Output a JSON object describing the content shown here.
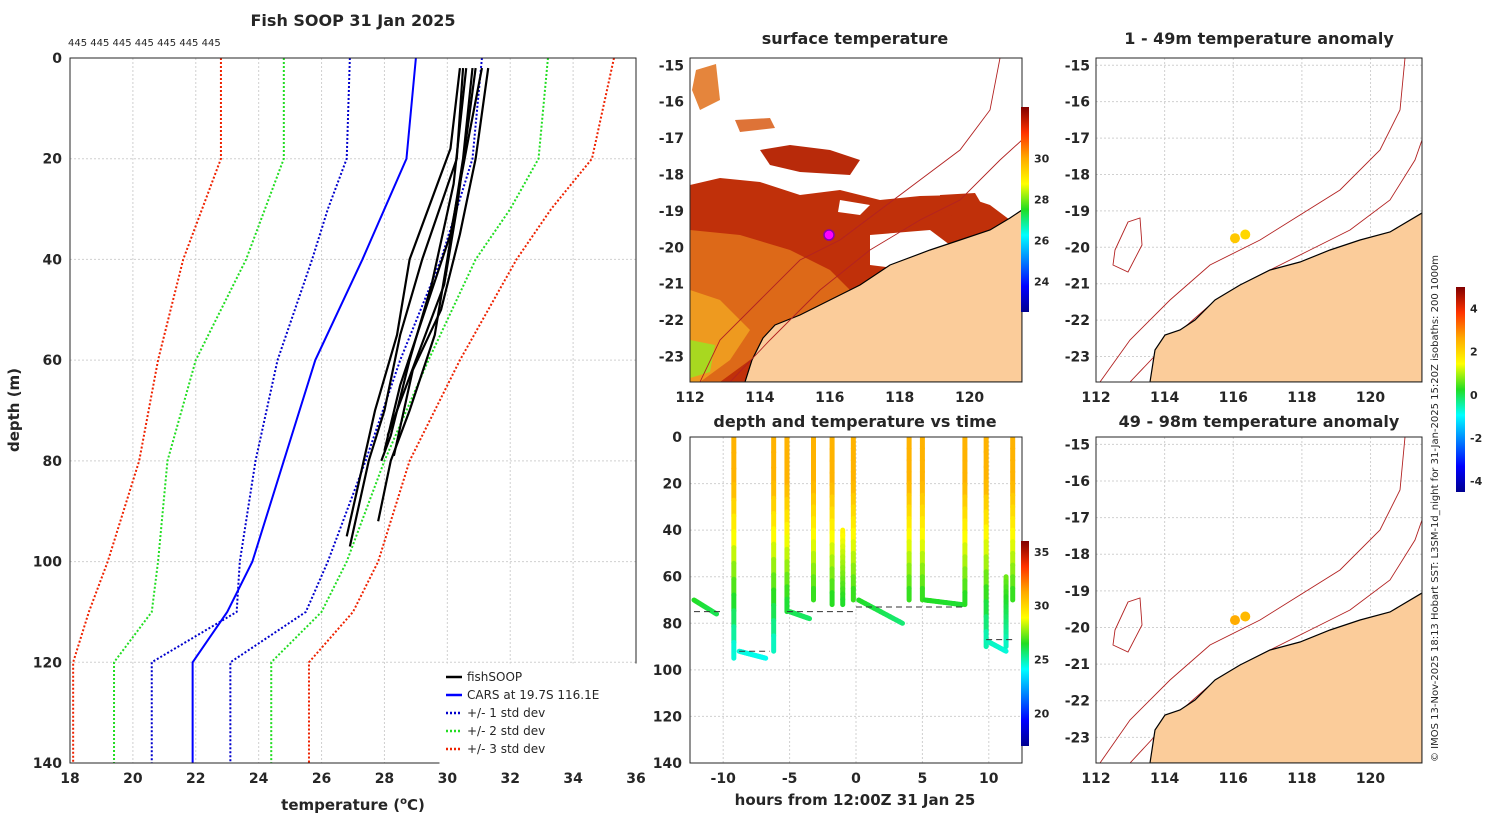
{
  "figure": {
    "main_title": "Fish SOOP 31 Jan 2025",
    "side_caption": "© IMOS 13-Nov-2025 18:13 Hobart SST: L3SM-1d_night for 31-Jan-2025 15:20Z isobaths: 200  1000m",
    "top_counts": "445 445 445 445 445 445 445"
  },
  "colors": {
    "fishsoop": "#000000",
    "cars": "#0000ff",
    "std1": "#0000cc",
    "std2": "#22dd22",
    "std3": "#ee2200",
    "land": "#fbcc9a",
    "isobath": "#b22222"
  },
  "chart_data": [
    {
      "id": "profile",
      "type": "line",
      "title": "Fish SOOP 31 Jan 2025",
      "xlabel": "temperature (°C)",
      "ylabel": "depth (m)",
      "xlim": [
        18,
        36
      ],
      "ylim": [
        140,
        0
      ],
      "xticks": [
        18,
        20,
        22,
        24,
        26,
        28,
        30,
        32,
        34,
        36
      ],
      "yticks": [
        0,
        20,
        40,
        60,
        80,
        100,
        120,
        140
      ],
      "grid": true,
      "legend_position": "bottom-right",
      "legend": [
        "fishSOOP",
        "CARS at 19.7S 116.1E",
        "+/- 1 std dev",
        "+/- 2 std dev",
        "+/- 3 std dev"
      ],
      "depth": [
        0,
        20,
        30,
        40,
        60,
        80,
        100,
        110,
        120,
        140
      ],
      "cars": [
        29.0,
        28.7,
        28.0,
        27.3,
        25.8,
        24.8,
        23.8,
        23.0,
        21.9,
        21.9
      ],
      "std1_low": [
        26.9,
        26.8,
        26.2,
        25.7,
        24.6,
        23.9,
        23.4,
        23.3,
        20.6,
        20.6
      ],
      "std1_high": [
        31.1,
        30.8,
        30.3,
        29.8,
        28.5,
        27.4,
        26.2,
        25.5,
        23.1,
        23.1
      ],
      "std2_low": [
        24.8,
        24.8,
        24.2,
        23.6,
        22.0,
        21.1,
        20.8,
        20.6,
        19.4,
        19.4
      ],
      "std2_high": [
        33.2,
        32.9,
        32.0,
        30.9,
        29.4,
        28.0,
        26.8,
        26.0,
        24.4,
        24.4
      ],
      "std3_low": [
        22.8,
        22.8,
        22.2,
        21.6,
        20.8,
        20.2,
        19.2,
        18.6,
        18.1,
        18.1
      ],
      "std3_high": [
        35.3,
        34.6,
        33.3,
        32.2,
        30.4,
        28.8,
        27.8,
        27.0,
        25.6,
        25.6
      ],
      "fish_profiles": [
        {
          "depth": [
            2,
            20,
            40,
            55,
            70,
            80,
            92
          ],
          "temp": [
            30.8,
            30.5,
            30.0,
            29.6,
            28.8,
            28.2,
            27.8
          ]
        },
        {
          "depth": [
            2,
            20,
            40,
            55,
            70,
            80,
            97
          ],
          "temp": [
            30.5,
            30.3,
            29.2,
            28.5,
            28.0,
            27.5,
            26.9
          ]
        },
        {
          "depth": [
            2,
            15,
            35,
            50,
            65,
            78
          ],
          "temp": [
            31.1,
            30.7,
            30.1,
            29.3,
            28.5,
            28.0
          ]
        },
        {
          "depth": [
            2,
            25,
            45,
            60,
            75,
            80
          ],
          "temp": [
            30.6,
            30.2,
            29.5,
            28.8,
            28.2,
            27.9
          ]
        },
        {
          "depth": [
            2,
            20,
            35,
            50,
            62,
            79
          ],
          "temp": [
            31.3,
            30.9,
            30.4,
            29.8,
            28.9,
            28.3
          ]
        },
        {
          "depth": [
            2,
            18,
            40,
            55,
            70,
            95
          ],
          "temp": [
            30.4,
            30.1,
            28.8,
            28.4,
            27.7,
            26.8
          ]
        },
        {
          "depth": [
            2,
            30,
            45,
            60,
            75
          ],
          "temp": [
            30.9,
            30.3,
            29.9,
            29.0,
            28.1
          ]
        }
      ]
    },
    {
      "id": "sst_map",
      "type": "heatmap",
      "title": "surface temperature",
      "xlim": [
        112,
        121.5
      ],
      "ylim": [
        -23.7,
        -14.8
      ],
      "xticks": [
        112,
        114,
        116,
        118,
        120
      ],
      "yticks": [
        -15,
        -16,
        -17,
        -18,
        -19,
        -20,
        -21,
        -22,
        -23
      ],
      "colorbar_ticks": [
        24,
        26,
        28,
        30
      ],
      "colorbar_range": [
        22.5,
        32.5
      ]
    },
    {
      "id": "depth_time",
      "type": "scatter",
      "title": "depth and temperature vs time",
      "xlabel": "hours from 12:00Z 31 Jan 25",
      "xlim": [
        -12.5,
        12.5
      ],
      "ylim": [
        140,
        0
      ],
      "xticks": [
        -10,
        -5,
        0,
        5,
        10
      ],
      "yticks": [
        0,
        20,
        40,
        60,
        80,
        100,
        120,
        140
      ],
      "colorbar_ticks": [
        20,
        25,
        30,
        35
      ],
      "colorbar_range": [
        17,
        36
      ]
    },
    {
      "id": "anom1",
      "type": "scatter",
      "title": "1 - 49m temperature anomaly",
      "xlim": [
        112,
        121.5
      ],
      "ylim": [
        -23.7,
        -14.8
      ],
      "xticks": [
        112,
        114,
        116,
        118,
        120
      ],
      "yticks": [
        -15,
        -16,
        -17,
        -18,
        -19,
        -20,
        -21,
        -22,
        -23
      ],
      "points": [
        {
          "lon": 116.05,
          "lat": -19.75,
          "anom": 2.2
        },
        {
          "lon": 116.35,
          "lat": -19.65,
          "anom": 2.0
        }
      ]
    },
    {
      "id": "anom2",
      "type": "scatter",
      "title": "49 - 98m temperature anomaly",
      "xlim": [
        112,
        121.5
      ],
      "ylim": [
        -23.7,
        -14.8
      ],
      "xticks": [
        112,
        114,
        116,
        118,
        120
      ],
      "yticks": [
        -15,
        -16,
        -17,
        -18,
        -19,
        -20,
        -21,
        -22,
        -23
      ],
      "points": [
        {
          "lon": 116.05,
          "lat": -19.8,
          "anom": 2.6
        },
        {
          "lon": 116.35,
          "lat": -19.7,
          "anom": 2.4
        }
      ],
      "colorbar_ticks": [
        -4,
        -2,
        0,
        2,
        4
      ],
      "colorbar_range": [
        -4.5,
        5.0
      ]
    }
  ]
}
